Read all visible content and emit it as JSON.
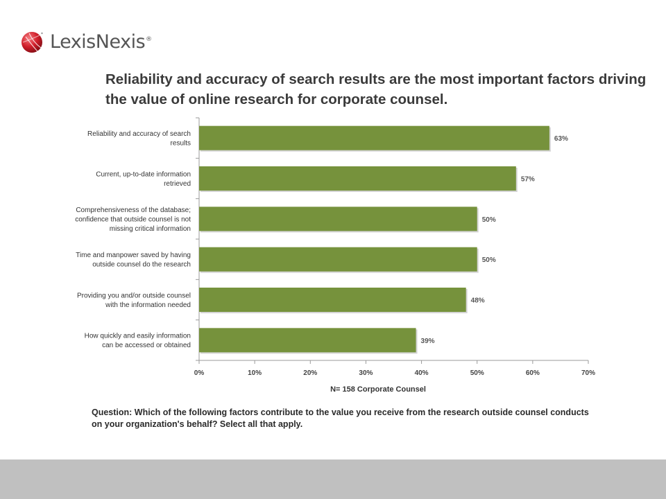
{
  "header": {
    "logo_text": "LexisNexis",
    "logo_mark": "®",
    "logo_icon": "lexisnexis-sphere-icon",
    "brand_color": "#d01e2a"
  },
  "headline": "Reliability and accuracy of search results are the most important factors driving the value of online research for corporate counsel.",
  "chart_data": {
    "type": "bar",
    "orientation": "horizontal",
    "categories": [
      [
        "Reliability and accuracy of search",
        "results"
      ],
      [
        "Current, up-to-date information",
        "retrieved"
      ],
      [
        "Comprehensiveness of the database;",
        "confidence that outside counsel is not",
        "missing critical information"
      ],
      [
        "Time and manpower saved by having",
        "outside counsel do the research"
      ],
      [
        "Providing you and/or outside counsel",
        "with the information needed"
      ],
      [
        "How quickly and easily information",
        "can be accessed or obtained"
      ]
    ],
    "values": [
      63,
      57,
      50,
      50,
      48,
      39
    ],
    "data_labels": [
      "63%",
      "57%",
      "50%",
      "50%",
      "48%",
      "39%"
    ],
    "xlim": [
      0,
      70
    ],
    "x_ticks": [
      "0%",
      "10%",
      "20%",
      "30%",
      "40%",
      "50%",
      "60%",
      "70%"
    ],
    "grid": false,
    "bar_color": "#76923c"
  },
  "sample_note": "N= 158 Corporate Counsel",
  "question": "Question:  Which of the following factors contribute to the value you receive from the research outside counsel conducts on your organization's behalf? Select all that apply."
}
